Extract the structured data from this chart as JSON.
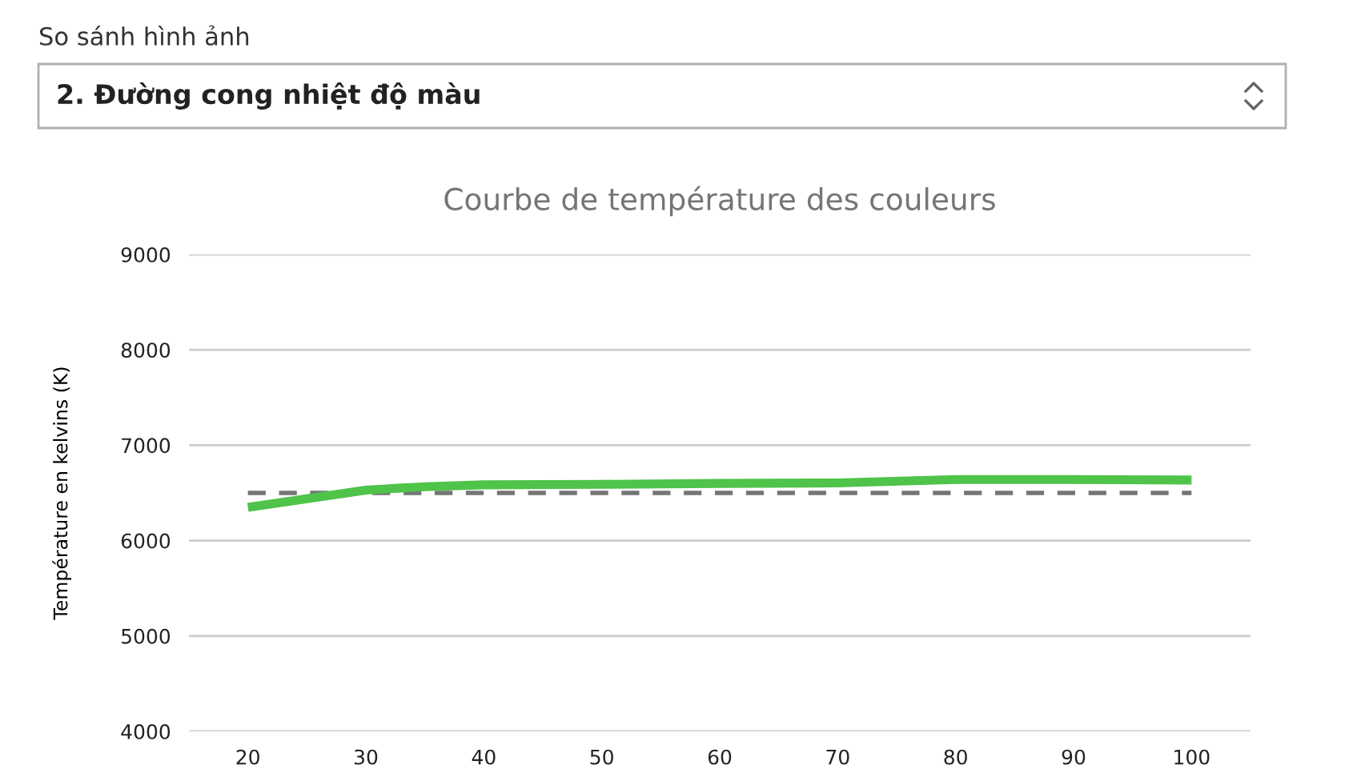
{
  "chart_data": {
    "type": "line",
    "title": "Courbe de température des couleurs",
    "ylabel": "Température en kelvins (K)",
    "annotations": [
      "So sánh hình ảnh",
      "2. Đường cong nhiệt độ màu"
    ],
    "x": [
      20,
      30,
      35,
      40,
      50,
      60,
      70,
      80,
      90,
      100
    ],
    "series": [
      {
        "color": "#4fc34a",
        "values": [
          6350,
          6530,
          6565,
          6585,
          6590,
          6600,
          6605,
          6640,
          6640,
          6635
        ]
      }
    ],
    "ref_lines": [
      {
        "axis": "y",
        "value": 6500,
        "color": "#757575",
        "line_style": "dashed"
      }
    ],
    "xlim": [
      15,
      105
    ],
    "xticks": [
      20,
      30,
      40,
      50,
      60,
      70,
      80,
      90,
      100
    ],
    "ylim": [
      4000,
      9000
    ],
    "yticks": [
      4000,
      5000,
      6000,
      7000,
      8000,
      9000
    ],
    "grid": "y",
    "legend": false,
    "marker": "none",
    "line_style": "solid"
  }
}
